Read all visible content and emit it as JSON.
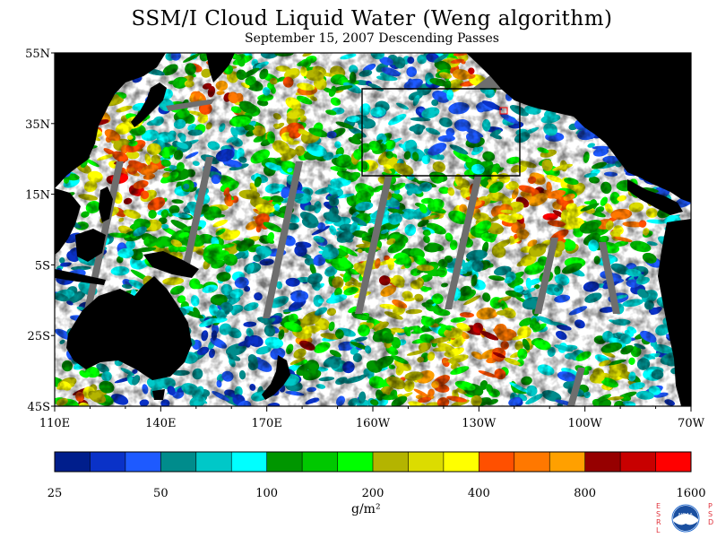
{
  "title": "SSM/I Cloud Liquid Water (Weng algorithm)",
  "subtitle": "September 15, 2007  Descending Passes",
  "map": {
    "lon_range": [
      "110E",
      "70W"
    ],
    "lat_range": [
      "45S",
      "55N"
    ],
    "lat_labels": [
      "55N",
      "35N",
      "15N",
      "5S",
      "25S",
      "45S"
    ],
    "lon_labels": [
      "110E",
      "140E",
      "170E",
      "160W",
      "130W",
      "100W",
      "70W"
    ],
    "land_color": "#000000",
    "no_data_color": "#ffffff",
    "orbit_gap_color": "#6e6e6e"
  },
  "colorbar": {
    "unit": "g/m²",
    "tick_labels": [
      "25",
      "50",
      "100",
      "200",
      "400",
      "800",
      "1600"
    ],
    "colors": [
      "#001e8c",
      "#0a32c8",
      "#1e5aff",
      "#008c8c",
      "#00c8c8",
      "#00ffff",
      "#009600",
      "#00c800",
      "#00ff00",
      "#b4b400",
      "#dcdc00",
      "#ffff00",
      "#ff5000",
      "#ff7800",
      "#ffa000",
      "#960000",
      "#c80000",
      "#ff0000"
    ]
  },
  "logo": {
    "left_letters": "ESRL",
    "right_letters": "PSD",
    "center_text": "NOAA"
  }
}
